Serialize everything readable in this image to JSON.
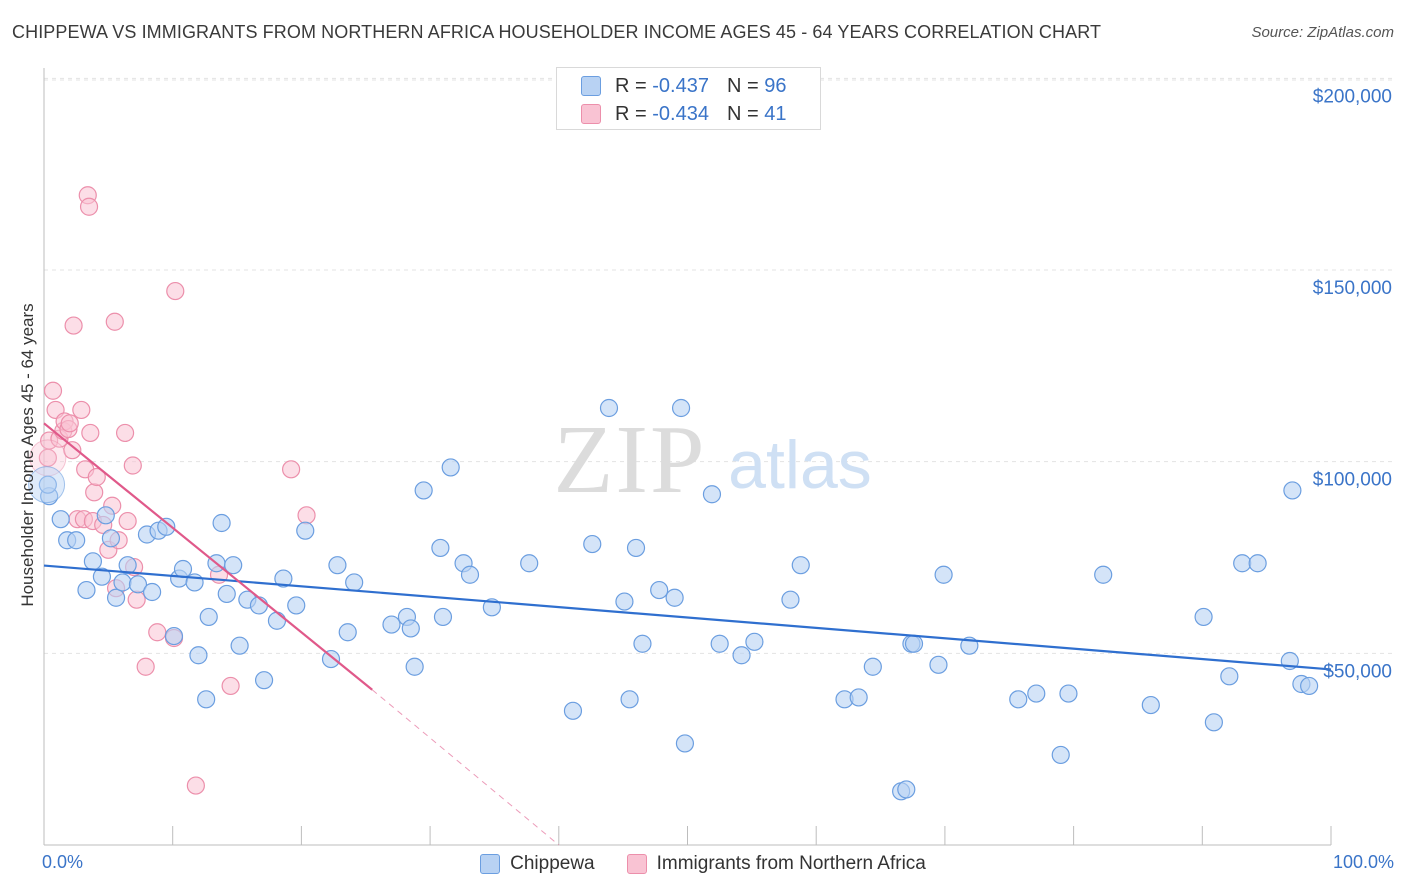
{
  "title": "CHIPPEWA VS IMMIGRANTS FROM NORTHERN AFRICA HOUSEHOLDER INCOME AGES 45 - 64 YEARS CORRELATION CHART",
  "source": "Source: ZipAtlas.com",
  "watermark": {
    "zip": "ZIP",
    "atlas": "atlas"
  },
  "legend_top": [
    {
      "r_label": "R =",
      "r_value": "-0.437",
      "n_label": "N =",
      "n_value": "96"
    },
    {
      "r_label": "R =",
      "r_value": "-0.434",
      "n_label": "N =",
      "n_value": "41"
    }
  ],
  "colors": {
    "blue_fill": "#b8d2f3",
    "blue_stroke": "#6b9ee0",
    "blue_line": "#2f6fcf",
    "pink_fill": "#f9c3d3",
    "pink_stroke": "#ec8fab",
    "pink_line": "#e0598a",
    "axis_text": "#3a74c8",
    "grid": "#e3e3e3"
  },
  "chart_data": {
    "type": "scatter",
    "title": "CHIPPEWA VS IMMIGRANTS FROM NORTHERN AFRICA HOUSEHOLDER INCOME AGES 45 - 64 YEARS CORRELATION CHART",
    "xlabel": "",
    "ylabel": "Householder Income Ages 45 - 64 years",
    "xlim": [
      0,
      100
    ],
    "ylim": [
      0,
      205000
    ],
    "x_tick_labels": [
      "0.0%",
      "100.0%"
    ],
    "y_ticks": [
      50000,
      100000,
      150000,
      200000
    ],
    "y_tick_labels": [
      "$50,000",
      "$100,000",
      "$150,000",
      "$200,000"
    ],
    "legend_position": "bottom",
    "series": [
      {
        "name": "Chippewa",
        "color": "#6b9ee0",
        "r": -0.437,
        "n": 96,
        "trend": {
          "x": [
            0,
            100
          ],
          "y": [
            72900,
            45800
          ]
        },
        "points": [
          [
            0.4,
            91000
          ],
          [
            0.3,
            94000
          ],
          [
            1.3,
            85000
          ],
          [
            1.8,
            79500
          ],
          [
            2.5,
            79500
          ],
          [
            3.3,
            66500
          ],
          [
            3.8,
            74000
          ],
          [
            4.5,
            70000
          ],
          [
            4.8,
            86000
          ],
          [
            5.2,
            80000
          ],
          [
            5.6,
            64500
          ],
          [
            6.1,
            68500
          ],
          [
            6.5,
            73000
          ],
          [
            7.3,
            68000
          ],
          [
            8.0,
            81000
          ],
          [
            8.4,
            66000
          ],
          [
            8.9,
            82000
          ],
          [
            9.5,
            83000
          ],
          [
            10.1,
            54500
          ],
          [
            10.5,
            69500
          ],
          [
            10.8,
            72000
          ],
          [
            11.7,
            68500
          ],
          [
            12.0,
            49500
          ],
          [
            12.6,
            38000
          ],
          [
            12.8,
            59500
          ],
          [
            13.4,
            73500
          ],
          [
            13.8,
            84000
          ],
          [
            14.2,
            65500
          ],
          [
            14.7,
            73000
          ],
          [
            15.2,
            52000
          ],
          [
            15.8,
            64000
          ],
          [
            16.7,
            62500
          ],
          [
            17.1,
            43000
          ],
          [
            18.1,
            58500
          ],
          [
            18.6,
            69500
          ],
          [
            19.6,
            62500
          ],
          [
            20.3,
            82000
          ],
          [
            22.3,
            48500
          ],
          [
            22.8,
            73000
          ],
          [
            23.6,
            55500
          ],
          [
            24.1,
            68500
          ],
          [
            27.0,
            57500
          ],
          [
            28.2,
            59500
          ],
          [
            28.5,
            56500
          ],
          [
            28.8,
            46500
          ],
          [
            29.5,
            92500
          ],
          [
            30.8,
            77500
          ],
          [
            31.0,
            59500
          ],
          [
            31.6,
            98500
          ],
          [
            32.6,
            73500
          ],
          [
            33.1,
            70500
          ],
          [
            34.8,
            62000
          ],
          [
            37.7,
            73500
          ],
          [
            41.1,
            35000
          ],
          [
            42.6,
            78500
          ],
          [
            43.9,
            114000
          ],
          [
            45.1,
            63500
          ],
          [
            45.5,
            38000
          ],
          [
            46.0,
            77500
          ],
          [
            46.5,
            52500
          ],
          [
            47.8,
            66500
          ],
          [
            49.0,
            64500
          ],
          [
            49.5,
            114000
          ],
          [
            49.8,
            26500
          ],
          [
            51.9,
            91500
          ],
          [
            52.5,
            52500
          ],
          [
            54.2,
            49500
          ],
          [
            55.2,
            53000
          ],
          [
            58.0,
            64000
          ],
          [
            58.8,
            73000
          ],
          [
            62.2,
            38000
          ],
          [
            63.3,
            38500
          ],
          [
            64.4,
            46500
          ],
          [
            67.4,
            52500
          ],
          [
            67.6,
            52500
          ],
          [
            66.6,
            14000
          ],
          [
            67.0,
            14500
          ],
          [
            69.5,
            47000
          ],
          [
            69.9,
            70500
          ],
          [
            71.9,
            52000
          ],
          [
            75.7,
            38000
          ],
          [
            77.1,
            39500
          ],
          [
            79.0,
            23500
          ],
          [
            79.6,
            39500
          ],
          [
            82.3,
            70500
          ],
          [
            86.0,
            36500
          ],
          [
            90.1,
            59500
          ],
          [
            90.9,
            32000
          ],
          [
            92.1,
            44000
          ],
          [
            93.1,
            73500
          ],
          [
            94.3,
            73500
          ],
          [
            96.8,
            48000
          ],
          [
            97.0,
            92500
          ],
          [
            97.7,
            42000
          ],
          [
            98.3,
            41500
          ]
        ]
      },
      {
        "name": "Immigrants from Northern Africa",
        "color": "#ec8fab",
        "r": -0.434,
        "n": 41,
        "trend": {
          "x": [
            0,
            25.5
          ],
          "y": [
            110000,
            40500
          ]
        },
        "trend_dashed": {
          "x": [
            25.5,
            40.0
          ],
          "y": [
            40500,
            0
          ]
        },
        "points": [
          [
            0.3,
            101000
          ],
          [
            0.4,
            105500
          ],
          [
            0.7,
            118500
          ],
          [
            0.9,
            113500
          ],
          [
            1.2,
            106000
          ],
          [
            1.5,
            108000
          ],
          [
            1.6,
            110500
          ],
          [
            1.9,
            108500
          ],
          [
            2.0,
            110000
          ],
          [
            2.2,
            103000
          ],
          [
            2.3,
            135500
          ],
          [
            2.6,
            85000
          ],
          [
            2.9,
            113500
          ],
          [
            3.1,
            85000
          ],
          [
            3.2,
            98000
          ],
          [
            3.4,
            169500
          ],
          [
            3.5,
            166500
          ],
          [
            3.6,
            107500
          ],
          [
            3.8,
            84500
          ],
          [
            3.9,
            92000
          ],
          [
            4.1,
            96000
          ],
          [
            4.6,
            83500
          ],
          [
            5.0,
            77000
          ],
          [
            5.3,
            88500
          ],
          [
            5.5,
            136500
          ],
          [
            5.6,
            67000
          ],
          [
            5.8,
            79500
          ],
          [
            6.3,
            107500
          ],
          [
            6.5,
            84500
          ],
          [
            6.9,
            99000
          ],
          [
            7.0,
            72500
          ],
          [
            7.2,
            64000
          ],
          [
            7.9,
            46500
          ],
          [
            8.8,
            55500
          ],
          [
            10.1,
            54000
          ],
          [
            10.2,
            144500
          ],
          [
            11.8,
            15500
          ],
          [
            13.6,
            70500
          ],
          [
            14.5,
            41500
          ],
          [
            19.2,
            98000
          ],
          [
            20.4,
            86000
          ]
        ]
      }
    ]
  }
}
